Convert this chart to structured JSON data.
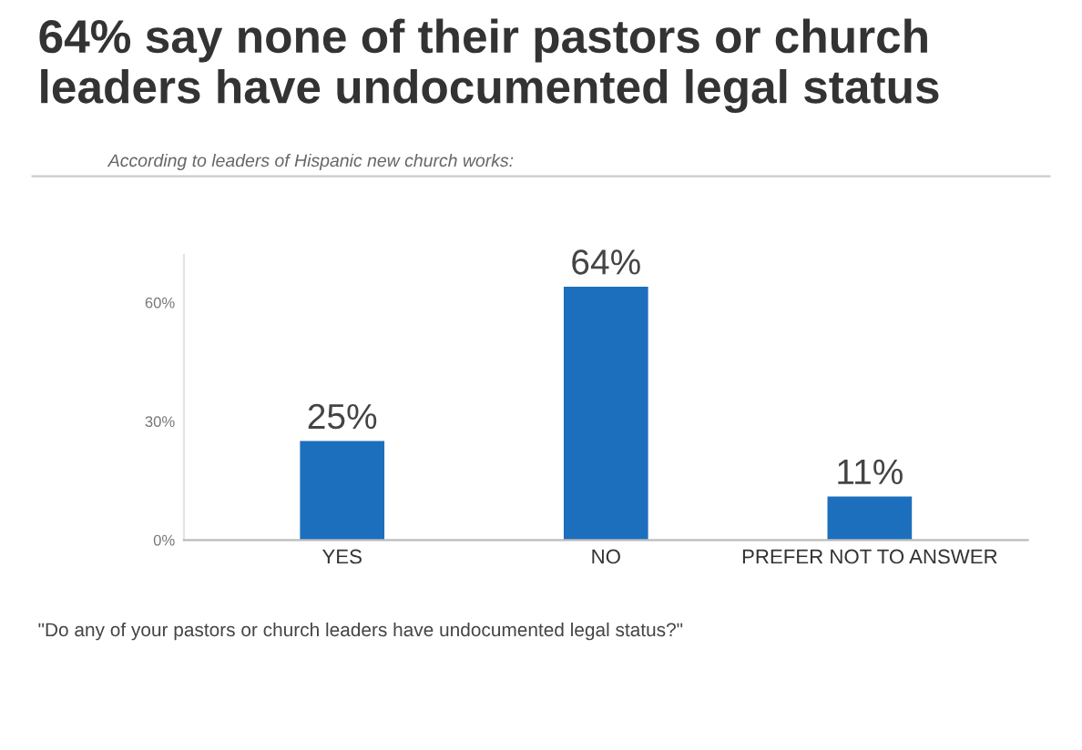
{
  "chart_data": {
    "type": "bar",
    "title": "64% say none of their pastors or church leaders have undocumented legal status",
    "subtitle": "According to leaders of Hispanic new church works:",
    "categories": [
      "YES",
      "NO",
      "PREFER NOT TO ANSWER"
    ],
    "values": [
      25,
      64,
      11
    ],
    "color": "#1c6fbd",
    "value_labels": [
      "25%",
      "64%",
      "11%"
    ],
    "ylim": [
      0,
      72
    ],
    "yticks": [
      {
        "value": 0,
        "label": "0%"
      },
      {
        "value": 30,
        "label": "30%"
      },
      {
        "value": 60,
        "label": "60%"
      }
    ],
    "grid": false,
    "annotations": [
      "\"Do any of your pastors or church leaders have undocumented legal status?\""
    ]
  }
}
